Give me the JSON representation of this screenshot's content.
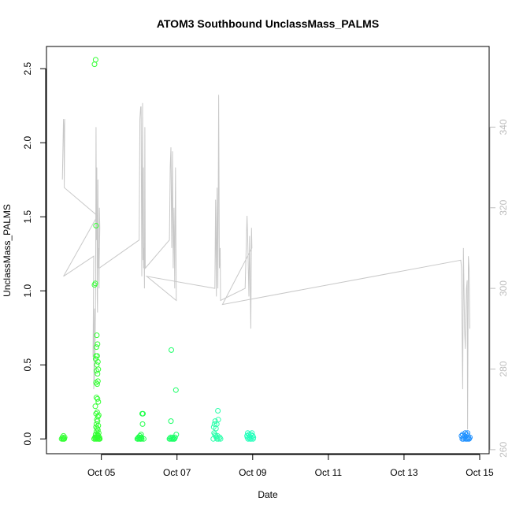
{
  "chart_data": {
    "type": "scatter",
    "title": "ATOM3 Southbound UnclassMass_PALMS",
    "xlabel": "Date",
    "ylabel": "UnclassMass_PALMS",
    "x_ticks": [
      {
        "day": 5,
        "label": "Oct 05"
      },
      {
        "day": 7,
        "label": "Oct 07"
      },
      {
        "day": 9,
        "label": "Oct 09"
      },
      {
        "day": 11,
        "label": "Oct 11"
      },
      {
        "day": 13,
        "label": "Oct 13"
      },
      {
        "day": 15,
        "label": "Oct 15"
      }
    ],
    "xlim": [
      3.55,
      15.25
    ],
    "ylim": [
      -0.1,
      2.65
    ],
    "y_ticks": [
      "0.0",
      "0.5",
      "1.0",
      "1.5",
      "2.0",
      "2.5"
    ],
    "y2lim": [
      259,
      360
    ],
    "y2_ticks": [
      "260",
      "280",
      "300",
      "320",
      "340"
    ],
    "colors": {
      "scatter_oct04": "#33ff33",
      "scatter_oct05": "#33ff33",
      "scatter_oct06": "#1fff4a",
      "scatter_oct07": "#1aff66",
      "scatter_oct08": "#2affaa",
      "scatter_oct09": "#22ffbb",
      "scatter_oct15": "#1e90ff",
      "secondary_line": "#c8c8c8",
      "axis": "#000000"
    },
    "scatter_series": [
      {
        "day": 4.0,
        "color_key": "scatter_oct04",
        "points": [
          [
            3.95,
            0.0
          ],
          [
            3.97,
            0.01
          ],
          [
            3.99,
            0.0
          ],
          [
            4.0,
            0.02
          ],
          [
            4.02,
            0.0
          ],
          [
            4.03,
            0.01
          ],
          [
            4.01,
            0.0
          ],
          [
            3.98,
            0.0
          ]
        ]
      },
      {
        "day": 4.9,
        "color_key": "scatter_oct05",
        "points": [
          [
            4.82,
            2.53
          ],
          [
            4.85,
            2.56
          ],
          [
            4.86,
            1.44
          ],
          [
            4.84,
            1.05
          ],
          [
            4.82,
            1.04
          ],
          [
            4.88,
            0.7
          ],
          [
            4.9,
            0.64
          ],
          [
            4.87,
            0.62
          ],
          [
            4.86,
            0.56
          ],
          [
            4.89,
            0.56
          ],
          [
            4.85,
            0.54
          ],
          [
            4.91,
            0.52
          ],
          [
            4.88,
            0.5
          ],
          [
            4.87,
            0.46
          ],
          [
            4.9,
            0.44
          ],
          [
            4.92,
            0.47
          ],
          [
            4.86,
            0.38
          ],
          [
            4.89,
            0.37
          ],
          [
            4.91,
            0.39
          ],
          [
            4.87,
            0.28
          ],
          [
            4.9,
            0.27
          ],
          [
            4.92,
            0.25
          ],
          [
            4.84,
            0.22
          ],
          [
            4.86,
            0.17
          ],
          [
            4.89,
            0.18
          ],
          [
            4.91,
            0.15
          ],
          [
            4.93,
            0.16
          ],
          [
            4.88,
            0.13
          ],
          [
            4.9,
            0.12
          ],
          [
            4.87,
            0.1
          ],
          [
            4.92,
            0.09
          ],
          [
            4.86,
            0.08
          ],
          [
            4.89,
            0.07
          ],
          [
            4.91,
            0.06
          ],
          [
            4.87,
            0.05
          ],
          [
            4.93,
            0.04
          ],
          [
            4.85,
            0.03
          ],
          [
            4.9,
            0.03
          ],
          [
            4.88,
            0.02
          ],
          [
            4.92,
            0.02
          ],
          [
            4.86,
            0.01
          ],
          [
            4.89,
            0.01
          ],
          [
            4.91,
            0.01
          ],
          [
            4.94,
            0.0
          ],
          [
            4.84,
            0.0
          ],
          [
            4.87,
            0.0
          ],
          [
            4.9,
            0.0
          ],
          [
            4.93,
            0.0
          ],
          [
            4.95,
            0.01
          ],
          [
            4.96,
            0.0
          ],
          [
            4.83,
            0.01
          ],
          [
            4.81,
            0.0
          ]
        ]
      },
      {
        "day": 6.0,
        "color_key": "scatter_oct06",
        "points": [
          [
            5.95,
            0.0
          ],
          [
            5.98,
            0.01
          ],
          [
            6.0,
            0.0
          ],
          [
            6.02,
            0.02
          ],
          [
            6.05,
            0.03
          ],
          [
            6.08,
            0.17
          ],
          [
            6.1,
            0.17
          ],
          [
            6.09,
            0.1
          ],
          [
            6.03,
            0.0
          ],
          [
            6.06,
            0.01
          ],
          [
            6.12,
            0.0
          ],
          [
            5.97,
            0.0
          ],
          [
            6.01,
            0.01
          ],
          [
            6.04,
            0.0
          ],
          [
            6.07,
            0.0
          ]
        ]
      },
      {
        "day": 6.85,
        "color_key": "scatter_oct07",
        "points": [
          [
            6.85,
            0.6
          ],
          [
            6.84,
            0.12
          ],
          [
            6.97,
            0.33
          ],
          [
            6.8,
            0.0
          ],
          [
            6.83,
            0.01
          ],
          [
            6.86,
            0.0
          ],
          [
            6.88,
            0.01
          ],
          [
            6.9,
            0.0
          ],
          [
            6.92,
            0.0
          ],
          [
            6.95,
            0.01
          ],
          [
            6.98,
            0.03
          ],
          [
            6.82,
            0.0
          ],
          [
            6.87,
            0.0
          ],
          [
            6.93,
            0.0
          ]
        ]
      },
      {
        "day": 8.05,
        "color_key": "scatter_oct08",
        "points": [
          [
            7.97,
            0.08
          ],
          [
            7.99,
            0.1
          ],
          [
            8.01,
            0.12
          ],
          [
            8.05,
            0.1
          ],
          [
            8.08,
            0.19
          ],
          [
            8.09,
            0.13
          ],
          [
            8.03,
            0.07
          ],
          [
            7.98,
            0.04
          ],
          [
            8.0,
            0.03
          ],
          [
            8.02,
            0.02
          ],
          [
            8.04,
            0.01
          ],
          [
            8.06,
            0.0
          ],
          [
            8.1,
            0.0
          ],
          [
            8.13,
            0.01
          ],
          [
            8.15,
            0.0
          ],
          [
            7.96,
            0.0
          ],
          [
            8.07,
            0.02
          ]
        ]
      },
      {
        "day": 8.9,
        "color_key": "scatter_oct09",
        "points": [
          [
            8.85,
            0.02
          ],
          [
            8.87,
            0.04
          ],
          [
            8.9,
            0.03
          ],
          [
            8.92,
            0.01
          ],
          [
            8.95,
            0.03
          ],
          [
            8.98,
            0.04
          ],
          [
            9.0,
            0.02
          ],
          [
            9.02,
            0.01
          ],
          [
            8.88,
            0.0
          ],
          [
            8.93,
            0.0
          ],
          [
            8.96,
            0.0
          ],
          [
            9.01,
            0.0
          ],
          [
            8.86,
            0.01
          ]
        ]
      },
      {
        "day": 14.65,
        "color_key": "scatter_oct15",
        "points": [
          [
            14.52,
            0.02
          ],
          [
            14.55,
            0.03
          ],
          [
            14.58,
            0.01
          ],
          [
            14.6,
            0.02
          ],
          [
            14.62,
            0.04
          ],
          [
            14.65,
            0.03
          ],
          [
            14.68,
            0.04
          ],
          [
            14.7,
            0.01
          ],
          [
            14.72,
            0.0
          ],
          [
            14.54,
            0.0
          ],
          [
            14.57,
            0.0
          ],
          [
            14.63,
            0.0
          ],
          [
            14.66,
            0.0
          ],
          [
            14.69,
            0.0
          ],
          [
            14.74,
            0.01
          ]
        ]
      }
    ],
    "secondary_line": [
      [
        3.97,
        327
      ],
      [
        4.0,
        342
      ],
      [
        4.01,
        340
      ],
      [
        4.02,
        326
      ],
      [
        4.03,
        342
      ],
      [
        4.02,
        325
      ],
      [
        4.9,
        318
      ],
      [
        4.0,
        303
      ],
      [
        4.8,
        308
      ],
      [
        4.78,
        283
      ],
      [
        4.82,
        295
      ],
      [
        4.8,
        275
      ],
      [
        4.83,
        280
      ],
      [
        4.85,
        300
      ],
      [
        4.86,
        340
      ],
      [
        4.87,
        312
      ],
      [
        4.88,
        330
      ],
      [
        4.89,
        298
      ],
      [
        4.9,
        294
      ],
      [
        4.91,
        327
      ],
      [
        4.92,
        305
      ],
      [
        4.93,
        310
      ],
      [
        4.94,
        300
      ],
      [
        4.95,
        320
      ],
      [
        4.96,
        315
      ],
      [
        4.94,
        305
      ],
      [
        6.0,
        312
      ],
      [
        6.02,
        342
      ],
      [
        6.04,
        345
      ],
      [
        6.05,
        345
      ],
      [
        6.07,
        303
      ],
      [
        6.09,
        346
      ],
      [
        6.1,
        307
      ],
      [
        6.11,
        330
      ],
      [
        6.12,
        305
      ],
      [
        6.13,
        310
      ],
      [
        6.14,
        300
      ],
      [
        6.15,
        340
      ],
      [
        6.16,
        305
      ],
      [
        6.8,
        312
      ],
      [
        6.82,
        330
      ],
      [
        6.84,
        335
      ],
      [
        6.86,
        310
      ],
      [
        6.88,
        334
      ],
      [
        6.9,
        305
      ],
      [
        6.92,
        320
      ],
      [
        6.94,
        300
      ],
      [
        6.96,
        330
      ],
      [
        6.98,
        297
      ],
      [
        6.2,
        303
      ],
      [
        8.0,
        300
      ],
      [
        8.02,
        322
      ],
      [
        8.04,
        298
      ],
      [
        8.06,
        325
      ],
      [
        8.08,
        300
      ],
      [
        8.1,
        348
      ],
      [
        8.12,
        305
      ],
      [
        8.14,
        310
      ],
      [
        8.15,
        297
      ],
      [
        8.8,
        300
      ],
      [
        8.85,
        318
      ],
      [
        8.87,
        312
      ],
      [
        8.9,
        298
      ],
      [
        8.92,
        313
      ],
      [
        8.95,
        290
      ],
      [
        8.97,
        315
      ],
      [
        8.98,
        310
      ],
      [
        8.2,
        296
      ],
      [
        14.5,
        307
      ],
      [
        14.52,
        305
      ],
      [
        14.55,
        275
      ],
      [
        14.57,
        310
      ],
      [
        14.6,
        290
      ],
      [
        14.62,
        285
      ],
      [
        14.65,
        300
      ],
      [
        14.67,
        302
      ],
      [
        14.68,
        265
      ],
      [
        14.7,
        308
      ],
      [
        14.72,
        305
      ],
      [
        14.74,
        290
      ]
    ]
  }
}
